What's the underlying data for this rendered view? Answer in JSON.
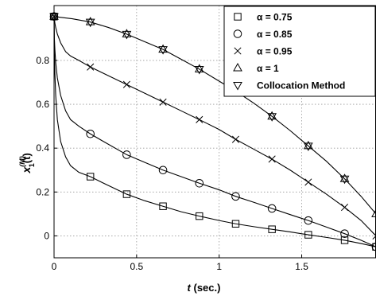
{
  "chart_data": {
    "type": "line",
    "xlabel_main": "t",
    "xlabel_unit": " (sec.)",
    "ylabel_base": "x",
    "ylabel_sup": "(M)",
    "ylabel_sub": "1",
    "ylabel_arg": "(t)",
    "xlim": [
      0,
      1.95
    ],
    "ylim": [
      -0.1,
      1.05
    ],
    "xticks": [
      0,
      0.5,
      1,
      1.5
    ],
    "xtick_labels": [
      "0",
      "0.5",
      "1",
      "1.5"
    ],
    "yticks": [
      0,
      0.2,
      0.4,
      0.6,
      0.8
    ],
    "ytick_labels": [
      "0",
      "0.2",
      "0.4",
      "0.6",
      "0.8"
    ],
    "grid": true,
    "legend_position": "top-right",
    "series": [
      {
        "name": "α = 0.75",
        "marker": "square",
        "x": [
          0,
          0.22,
          0.44,
          0.66,
          0.88,
          1.1,
          1.32,
          1.54,
          1.76,
          1.95
        ],
        "y": [
          1.0,
          0.27,
          0.19,
          0.135,
          0.09,
          0.055,
          0.03,
          0.005,
          -0.02,
          -0.05
        ]
      },
      {
        "name": "α = 0.85",
        "marker": "circle",
        "x": [
          0,
          0.22,
          0.44,
          0.66,
          0.88,
          1.1,
          1.32,
          1.54,
          1.76,
          1.95
        ],
        "y": [
          1.0,
          0.465,
          0.37,
          0.3,
          0.24,
          0.18,
          0.125,
          0.07,
          0.01,
          -0.05
        ]
      },
      {
        "name": "α = 0.95",
        "marker": "x",
        "x": [
          0,
          0.22,
          0.44,
          0.66,
          0.88,
          1.1,
          1.32,
          1.54,
          1.76,
          1.95
        ],
        "y": [
          1.0,
          0.77,
          0.69,
          0.61,
          0.53,
          0.44,
          0.35,
          0.245,
          0.13,
          0.0
        ]
      },
      {
        "name": "α = 1",
        "marker": "triangle-up",
        "x": [
          0,
          0.22,
          0.44,
          0.66,
          0.88,
          1.1,
          1.32,
          1.54,
          1.76,
          1.95
        ],
        "y": [
          1.0,
          0.975,
          0.92,
          0.85,
          0.76,
          0.66,
          0.545,
          0.41,
          0.26,
          0.1
        ]
      },
      {
        "name": "Collocation Method",
        "marker": "triangle-down",
        "x": [
          0,
          0.22,
          0.44,
          0.66,
          0.88,
          1.1,
          1.32,
          1.54,
          1.76
        ],
        "y": [
          1.0,
          0.975,
          0.92,
          0.85,
          0.76,
          0.66,
          0.545,
          0.41,
          0.26
        ]
      }
    ],
    "curves": [
      {
        "x": [
          0,
          0.002,
          0.005,
          0.01,
          0.02,
          0.04,
          0.07,
          0.1,
          0.15,
          0.22,
          0.3,
          0.44,
          0.55,
          0.66,
          0.77,
          0.88,
          1.0,
          1.1,
          1.21,
          1.32,
          1.43,
          1.54,
          1.65,
          1.76,
          1.86,
          1.95
        ],
        "y": [
          1.0,
          0.83,
          0.74,
          0.64,
          0.53,
          0.43,
          0.36,
          0.32,
          0.29,
          0.27,
          0.24,
          0.19,
          0.16,
          0.135,
          0.11,
          0.09,
          0.07,
          0.055,
          0.042,
          0.03,
          0.018,
          0.005,
          -0.007,
          -0.02,
          -0.035,
          -0.05
        ]
      },
      {
        "x": [
          0,
          0.002,
          0.005,
          0.01,
          0.02,
          0.04,
          0.07,
          0.1,
          0.15,
          0.22,
          0.3,
          0.44,
          0.55,
          0.66,
          0.77,
          0.88,
          1.0,
          1.1,
          1.21,
          1.32,
          1.43,
          1.54,
          1.65,
          1.76,
          1.86,
          1.95
        ],
        "y": [
          1.0,
          0.9,
          0.85,
          0.79,
          0.72,
          0.64,
          0.57,
          0.53,
          0.5,
          0.465,
          0.43,
          0.37,
          0.335,
          0.3,
          0.27,
          0.24,
          0.21,
          0.18,
          0.153,
          0.125,
          0.097,
          0.07,
          0.04,
          0.01,
          -0.02,
          -0.05
        ]
      },
      {
        "x": [
          0,
          0.005,
          0.01,
          0.02,
          0.04,
          0.07,
          0.1,
          0.15,
          0.22,
          0.33,
          0.44,
          0.55,
          0.66,
          0.77,
          0.88,
          1.0,
          1.1,
          1.21,
          1.32,
          1.43,
          1.54,
          1.65,
          1.76,
          1.86,
          1.95
        ],
        "y": [
          1.0,
          0.97,
          0.95,
          0.92,
          0.88,
          0.84,
          0.82,
          0.8,
          0.77,
          0.73,
          0.69,
          0.65,
          0.61,
          0.57,
          0.53,
          0.485,
          0.44,
          0.395,
          0.35,
          0.3,
          0.245,
          0.19,
          0.13,
          0.07,
          0.0
        ]
      },
      {
        "x": [
          0,
          0.11,
          0.22,
          0.33,
          0.44,
          0.55,
          0.66,
          0.77,
          0.88,
          0.99,
          1.1,
          1.21,
          1.32,
          1.43,
          1.54,
          1.65,
          1.76,
          1.86,
          1.95
        ],
        "y": [
          1.0,
          0.99,
          0.975,
          0.95,
          0.92,
          0.885,
          0.85,
          0.805,
          0.76,
          0.71,
          0.66,
          0.605,
          0.545,
          0.48,
          0.41,
          0.34,
          0.26,
          0.18,
          0.1
        ]
      }
    ]
  }
}
